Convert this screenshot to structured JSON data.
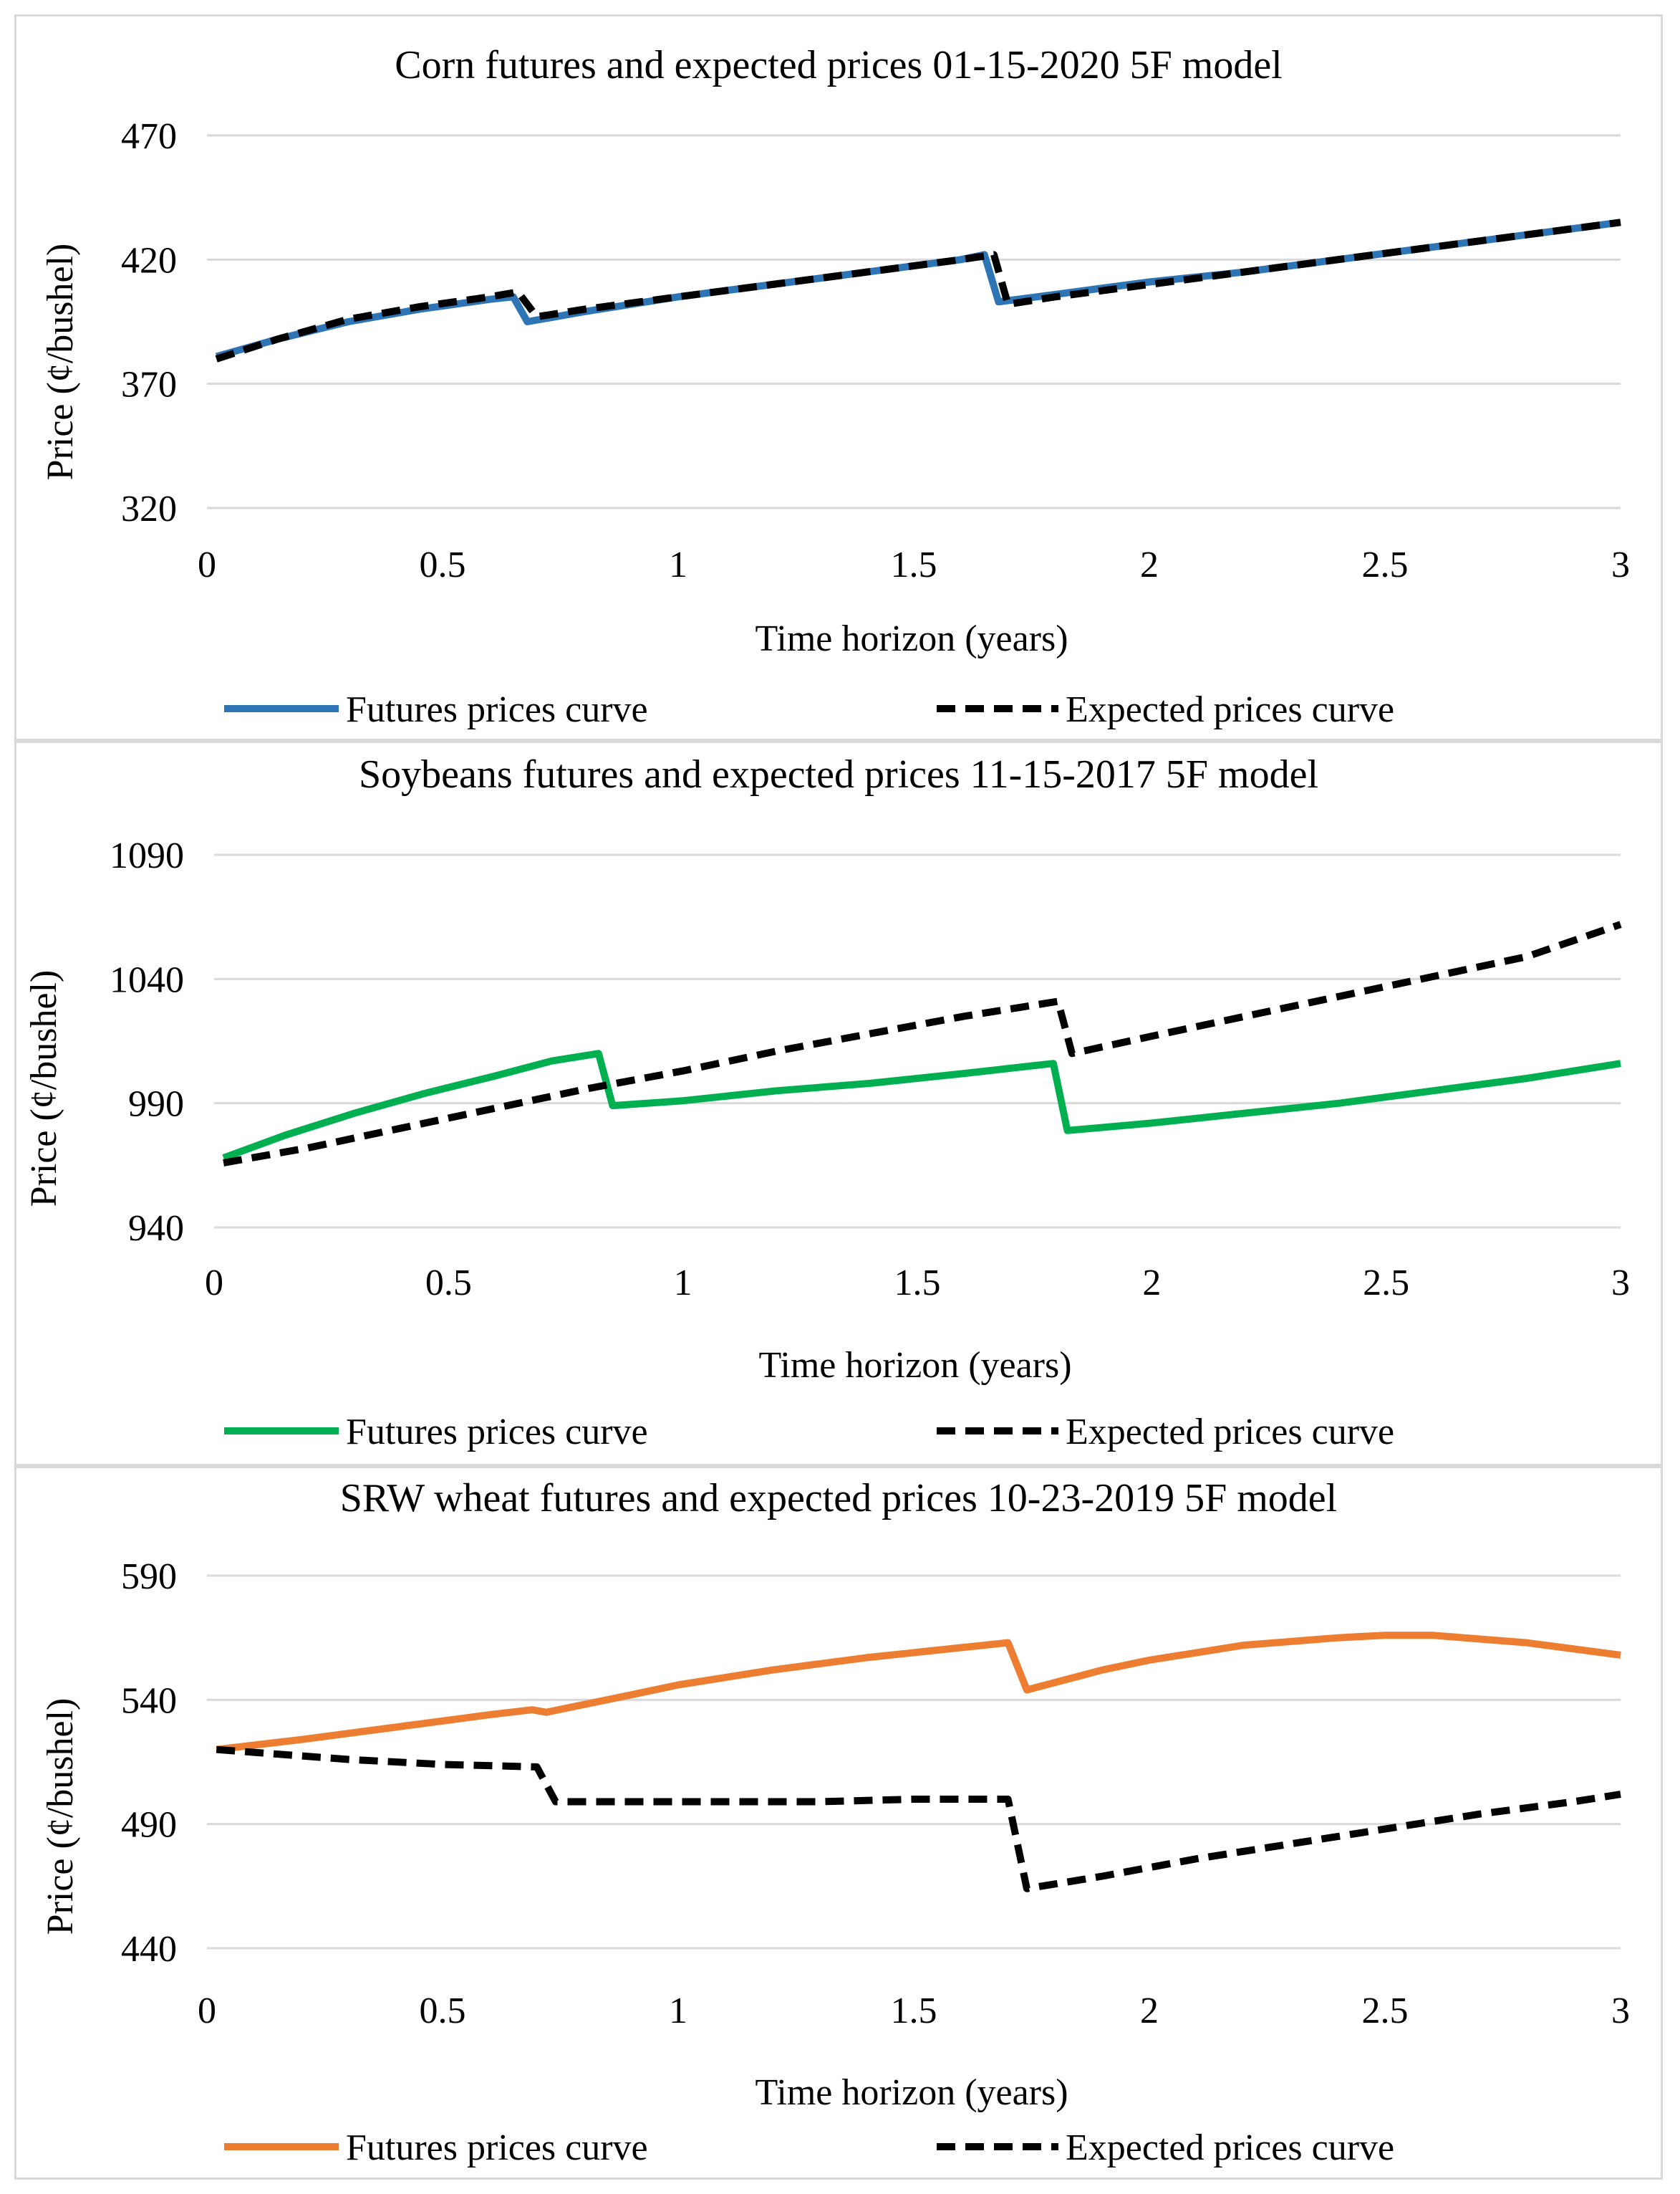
{
  "chart_data": [
    {
      "type": "line",
      "title": "Corn futures and expected prices 01-15-2020 5F model",
      "xlabel": "Time horizon (years)",
      "ylabel": "Price (¢/bushel)",
      "xlim": [
        0,
        3
      ],
      "ylim": [
        320,
        470
      ],
      "xticks": [
        "0",
        "0.5",
        "1",
        "1.5",
        "2",
        "2.5",
        "3"
      ],
      "yticks": [
        "470",
        "420",
        "370",
        "320"
      ],
      "grid": true,
      "legend": "bottom",
      "series": [
        {
          "name": "Futures prices curve",
          "style": "solid",
          "color": "#2e75b6",
          "points": [
            [
              0.02,
              381
            ],
            [
              0.15,
              388
            ],
            [
              0.3,
              395
            ],
            [
              0.45,
              400
            ],
            [
              0.6,
              404
            ],
            [
              0.65,
              405
            ],
            [
              0.68,
              395
            ],
            [
              0.8,
              399
            ],
            [
              1.0,
              405
            ],
            [
              1.2,
              410
            ],
            [
              1.4,
              415
            ],
            [
              1.6,
              420
            ],
            [
              1.65,
              422
            ],
            [
              1.68,
              403
            ],
            [
              1.8,
              406
            ],
            [
              2.0,
              411
            ],
            [
              2.2,
              415
            ],
            [
              2.4,
              420
            ],
            [
              2.6,
              425
            ],
            [
              2.8,
              430
            ],
            [
              3.0,
              435
            ]
          ]
        },
        {
          "name": "Expected prices curve",
          "style": "dashed",
          "color": "#000000",
          "points": [
            [
              0.02,
              380
            ],
            [
              0.15,
              388
            ],
            [
              0.3,
              396
            ],
            [
              0.45,
              401
            ],
            [
              0.6,
              405
            ],
            [
              0.66,
              407
            ],
            [
              0.7,
              397
            ],
            [
              0.8,
              400
            ],
            [
              1.0,
              405
            ],
            [
              1.2,
              410
            ],
            [
              1.4,
              415
            ],
            [
              1.6,
              420
            ],
            [
              1.67,
              422
            ],
            [
              1.7,
              402
            ],
            [
              1.8,
              405
            ],
            [
              2.0,
              410
            ],
            [
              2.2,
              415
            ],
            [
              2.4,
              420
            ],
            [
              2.6,
              425
            ],
            [
              2.8,
              430
            ],
            [
              3.0,
              435
            ]
          ]
        }
      ]
    },
    {
      "type": "line",
      "title": "Soybeans futures and expected prices 11-15-2017 5F model",
      "xlabel": "Time horizon (years)",
      "ylabel": "Price (¢/bushel)",
      "xlim": [
        0,
        3
      ],
      "ylim": [
        940,
        1090
      ],
      "xticks": [
        "0",
        "0.5",
        "1",
        "1.5",
        "2",
        "2.5",
        "3"
      ],
      "yticks": [
        "1090",
        "1040",
        "990",
        "940"
      ],
      "grid": true,
      "legend": "bottom",
      "series": [
        {
          "name": "Futures prices curve",
          "style": "solid",
          "color": "#00b050",
          "points": [
            [
              0.02,
              968
            ],
            [
              0.15,
              977
            ],
            [
              0.3,
              986
            ],
            [
              0.45,
              994
            ],
            [
              0.6,
              1001
            ],
            [
              0.72,
              1007
            ],
            [
              0.82,
              1010
            ],
            [
              0.85,
              989
            ],
            [
              1.0,
              991
            ],
            [
              1.2,
              995
            ],
            [
              1.4,
              998
            ],
            [
              1.6,
              1002
            ],
            [
              1.79,
              1006
            ],
            [
              1.82,
              979
            ],
            [
              2.0,
              982
            ],
            [
              2.2,
              986
            ],
            [
              2.4,
              990
            ],
            [
              2.6,
              995
            ],
            [
              2.8,
              1000
            ],
            [
              3.0,
              1006
            ]
          ]
        },
        {
          "name": "Expected prices curve",
          "style": "dashed",
          "color": "#000000",
          "points": [
            [
              0.02,
              966
            ],
            [
              0.2,
              972
            ],
            [
              0.4,
              980
            ],
            [
              0.6,
              988
            ],
            [
              0.8,
              996
            ],
            [
              1.0,
              1003
            ],
            [
              1.2,
              1011
            ],
            [
              1.4,
              1018
            ],
            [
              1.6,
              1025
            ],
            [
              1.8,
              1031
            ],
            [
              1.83,
              1010
            ],
            [
              2.0,
              1017
            ],
            [
              2.2,
              1025
            ],
            [
              2.4,
              1033
            ],
            [
              2.6,
              1041
            ],
            [
              2.8,
              1049
            ],
            [
              3.0,
              1062
            ]
          ]
        }
      ]
    },
    {
      "type": "line",
      "title": "SRW wheat futures and expected prices 10-23-2019 5F model",
      "xlabel": "Time horizon (years)",
      "ylabel": "Price (¢/bushel)",
      "xlim": [
        0,
        3
      ],
      "ylim": [
        440,
        590
      ],
      "xticks": [
        "0",
        "0.5",
        "1",
        "1.5",
        "2",
        "2.5",
        "3"
      ],
      "yticks": [
        "590",
        "540",
        "490",
        "440"
      ],
      "grid": true,
      "legend": "bottom",
      "series": [
        {
          "name": "Futures prices curve",
          "style": "solid",
          "color": "#ed7d31",
          "points": [
            [
              0.02,
              520
            ],
            [
              0.2,
              524
            ],
            [
              0.4,
              529
            ],
            [
              0.6,
              534
            ],
            [
              0.69,
              536
            ],
            [
              0.72,
              535
            ],
            [
              0.9,
              542
            ],
            [
              1.0,
              546
            ],
            [
              1.2,
              552
            ],
            [
              1.4,
              557
            ],
            [
              1.6,
              561
            ],
            [
              1.7,
              563
            ],
            [
              1.74,
              544
            ],
            [
              1.9,
              552
            ],
            [
              2.0,
              556
            ],
            [
              2.2,
              562
            ],
            [
              2.4,
              565
            ],
            [
              2.5,
              566
            ],
            [
              2.6,
              566
            ],
            [
              2.8,
              563
            ],
            [
              3.0,
              558
            ]
          ]
        },
        {
          "name": "Expected prices curve",
          "style": "dashed",
          "color": "#000000",
          "points": [
            [
              0.02,
              520
            ],
            [
              0.3,
              516
            ],
            [
              0.5,
              514
            ],
            [
              0.7,
              513
            ],
            [
              0.74,
              499
            ],
            [
              1.0,
              499
            ],
            [
              1.3,
              499
            ],
            [
              1.5,
              500
            ],
            [
              1.7,
              500
            ],
            [
              1.74,
              464
            ],
            [
              1.9,
              469
            ],
            [
              2.1,
              476
            ],
            [
              2.3,
              482
            ],
            [
              2.5,
              488
            ],
            [
              2.7,
              494
            ],
            [
              2.9,
              499
            ],
            [
              3.0,
              502
            ]
          ]
        }
      ]
    }
  ]
}
